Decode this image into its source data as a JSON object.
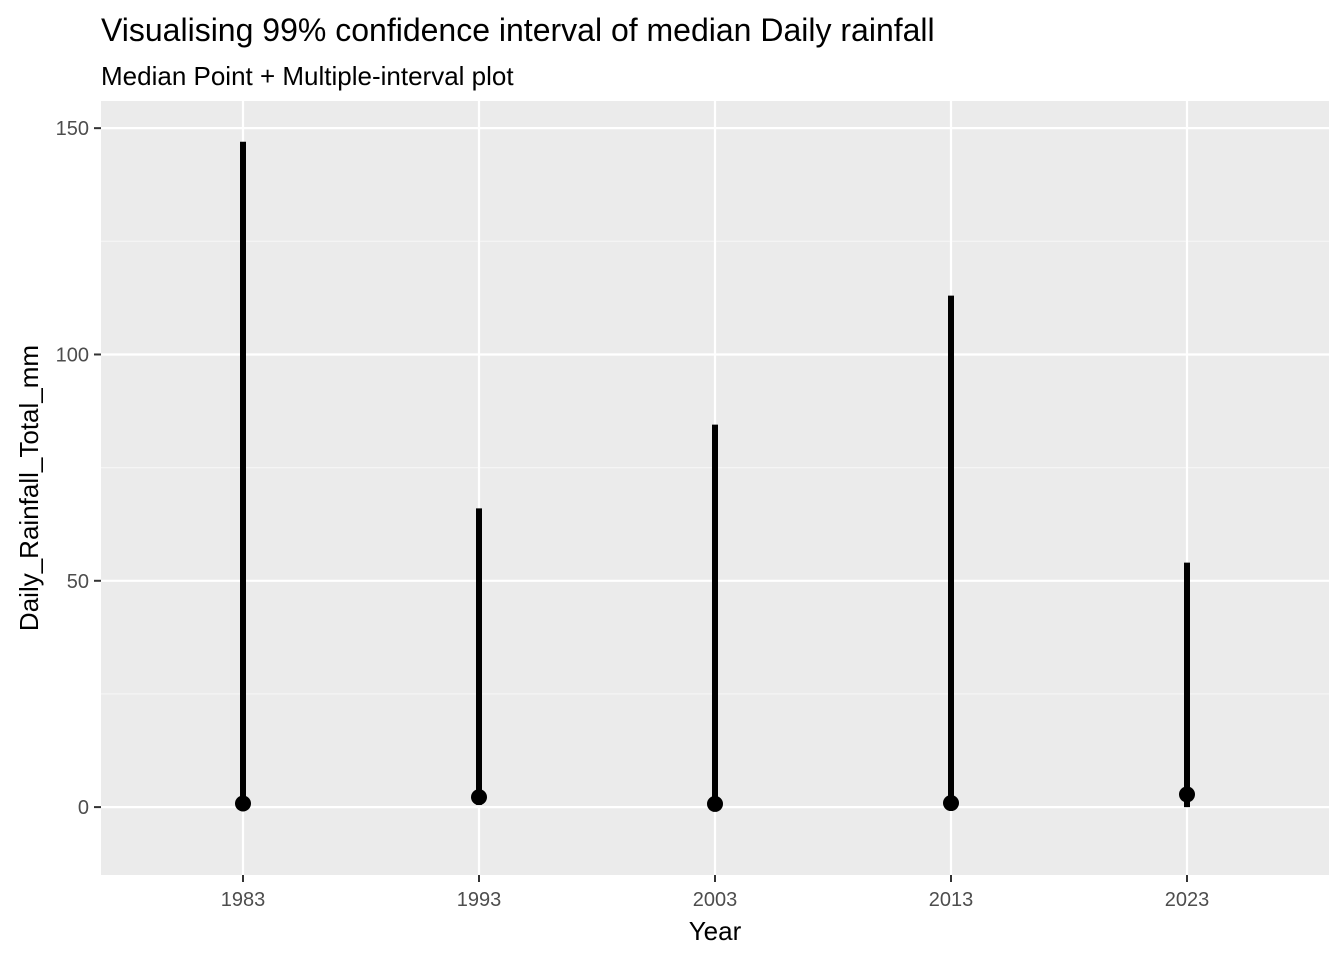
{
  "chart_data": {
    "type": "scatter",
    "title": "Visualising 99%  confidence interval of median Daily rainfall",
    "subtitle": "Median Point + Multiple-interval plot",
    "xlabel": "Year",
    "ylabel": "Daily_Rainfall_Total_mm",
    "categories": [
      "1983",
      "1993",
      "2003",
      "2013",
      "2023"
    ],
    "ylim": [
      -15,
      156
    ],
    "yticks": [
      0,
      50,
      100,
      150
    ],
    "grid": true,
    "legend": "none",
    "series": [
      {
        "median": [
          0.8,
          2.2,
          0.7,
          0.9,
          2.8
        ],
        "interval_low": [
          0,
          0.5,
          0,
          0,
          0
        ],
        "interval_high": [
          147,
          66,
          84.5,
          113,
          54
        ]
      }
    ],
    "colors": {
      "panel": "#ebebeb",
      "grid_major": "#ffffff",
      "grid_minor": "#f5f5f5",
      "marks": "#000000"
    }
  }
}
